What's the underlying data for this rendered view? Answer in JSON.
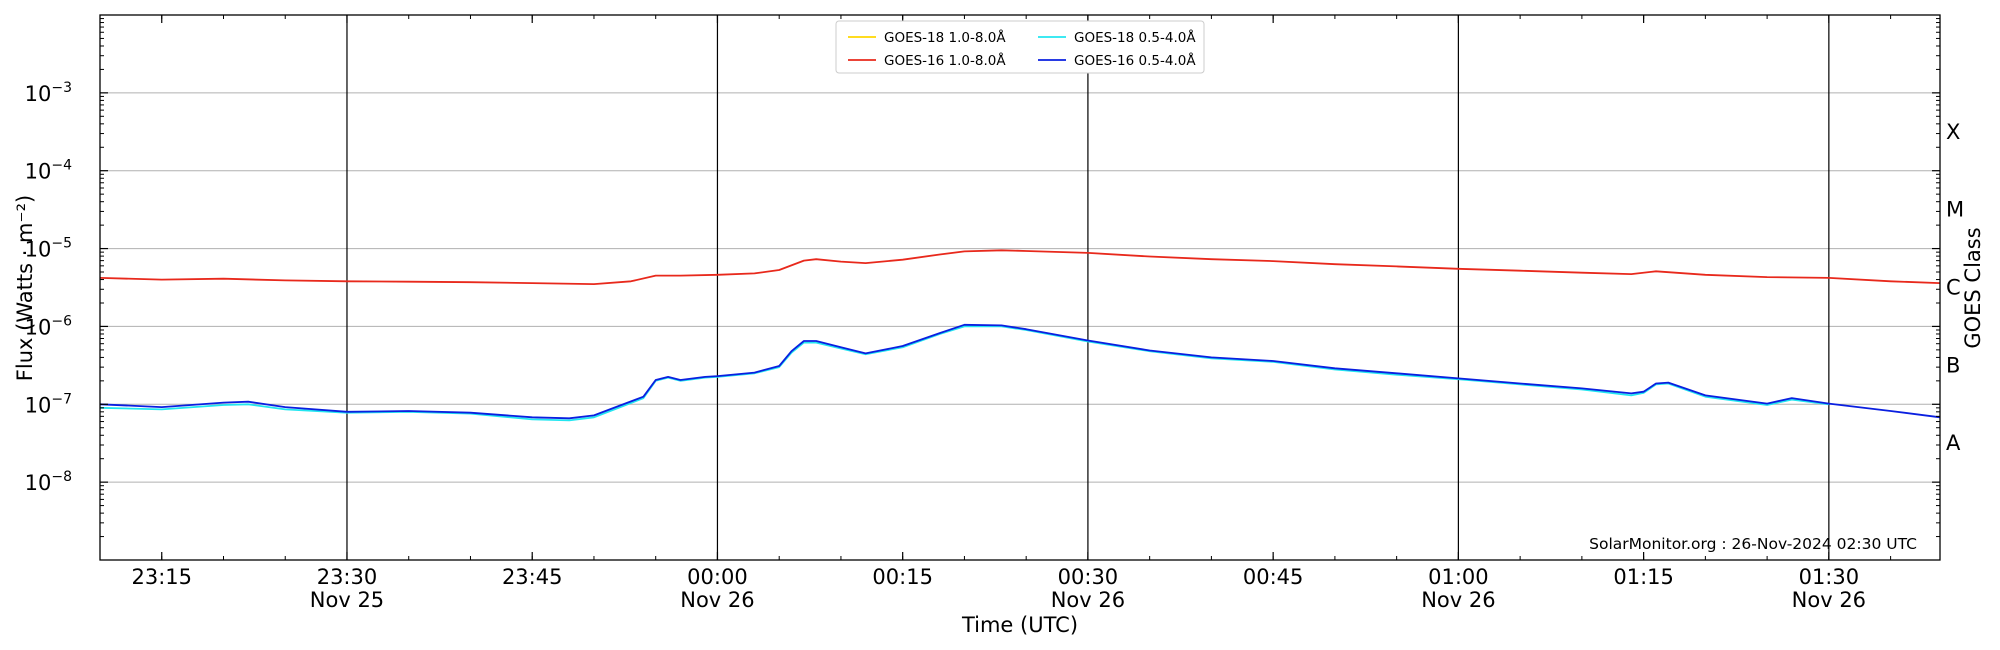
{
  "chart_data": {
    "type": "line",
    "xlabel": "Time (UTC)",
    "ylabel": "Flux (Watts · m⁻²)",
    "y2label": "GOES Class",
    "yscale": "log",
    "xlim": [
      "2024-11-25 23:10",
      "2024-11-26 01:39"
    ],
    "ylim": [
      1e-09,
      0.01
    ],
    "grid": "horizontal at decades",
    "legend_position": "top-center",
    "credit": "SolarMonitor.org : 26-Nov-2024 02:30 UTC",
    "x_ticks": [
      {
        "time": "2024-11-25 23:15",
        "label": "23:15",
        "date": ""
      },
      {
        "time": "2024-11-25 23:30",
        "label": "23:30",
        "date": "Nov 25"
      },
      {
        "time": "2024-11-25 23:45",
        "label": "23:45",
        "date": ""
      },
      {
        "time": "2024-11-26 00:00",
        "label": "00:00",
        "date": "Nov 26"
      },
      {
        "time": "2024-11-26 00:15",
        "label": "00:15",
        "date": ""
      },
      {
        "time": "2024-11-26 00:30",
        "label": "00:30",
        "date": "Nov 26"
      },
      {
        "time": "2024-11-26 00:45",
        "label": "00:45",
        "date": ""
      },
      {
        "time": "2024-11-26 01:00",
        "label": "01:00",
        "date": "Nov 26"
      },
      {
        "time": "2024-11-26 01:15",
        "label": "01:15",
        "date": ""
      },
      {
        "time": "2024-11-26 01:30",
        "label": "01:30",
        "date": "Nov 26"
      }
    ],
    "vertical_lines": [
      "2024-11-25 23:30",
      "2024-11-26 00:00",
      "2024-11-26 00:30",
      "2024-11-26 01:00",
      "2024-11-26 01:30"
    ],
    "y_ticks": [
      {
        "value": 1e-08,
        "mantissa": "10",
        "exponent": "−8"
      },
      {
        "value": 1e-07,
        "mantissa": "10",
        "exponent": "−7"
      },
      {
        "value": 1e-06,
        "mantissa": "10",
        "exponent": "−6"
      },
      {
        "value": 1e-05,
        "mantissa": "10",
        "exponent": "−5"
      },
      {
        "value": 0.0001,
        "mantissa": "10",
        "exponent": "−4"
      },
      {
        "value": 0.001,
        "mantissa": "10",
        "exponent": "−3"
      }
    ],
    "goes_classes": [
      {
        "label": "A",
        "value": 3.16e-08
      },
      {
        "label": "B",
        "value": 3.16e-07
      },
      {
        "label": "C",
        "value": 3.16e-06
      },
      {
        "label": "M",
        "value": 3.16e-05
      },
      {
        "label": "X",
        "value": 0.000316
      }
    ],
    "series": [
      {
        "name": "GOES-18 1.0-8.0Å",
        "color": "#ffd700",
        "times": [],
        "values": []
      },
      {
        "name": "GOES-16 1.0-8.0Å",
        "color": "#e8291c",
        "times": [
          "2024-11-25 23:10",
          "2024-11-25 23:15",
          "2024-11-25 23:20",
          "2024-11-25 23:25",
          "2024-11-25 23:30",
          "2024-11-25 23:35",
          "2024-11-25 23:40",
          "2024-11-25 23:45",
          "2024-11-25 23:50",
          "2024-11-25 23:53",
          "2024-11-25 23:55",
          "2024-11-25 23:57",
          "2024-11-26 00:00",
          "2024-11-26 00:03",
          "2024-11-26 00:05",
          "2024-11-26 00:07",
          "2024-11-26 00:08",
          "2024-11-26 00:10",
          "2024-11-26 00:12",
          "2024-11-26 00:15",
          "2024-11-26 00:18",
          "2024-11-26 00:20",
          "2024-11-26 00:23",
          "2024-11-26 00:25",
          "2024-11-26 00:30",
          "2024-11-26 00:35",
          "2024-11-26 00:40",
          "2024-11-26 00:45",
          "2024-11-26 00:50",
          "2024-11-26 00:55",
          "2024-11-26 01:00",
          "2024-11-26 01:05",
          "2024-11-26 01:10",
          "2024-11-26 01:14",
          "2024-11-26 01:16",
          "2024-11-26 01:20",
          "2024-11-26 01:25",
          "2024-11-26 01:30",
          "2024-11-26 01:35",
          "2024-11-26 01:39"
        ],
        "values": [
          4.2e-06,
          4e-06,
          4.1e-06,
          3.9e-06,
          3.8e-06,
          3.75e-06,
          3.7e-06,
          3.6e-06,
          3.5e-06,
          3.8e-06,
          4.5e-06,
          4.5e-06,
          4.6e-06,
          4.8e-06,
          5.3e-06,
          7e-06,
          7.3e-06,
          6.8e-06,
          6.5e-06,
          7.2e-06,
          8.4e-06,
          9.2e-06,
          9.5e-06,
          9.3e-06,
          8.8e-06,
          7.9e-06,
          7.3e-06,
          6.9e-06,
          6.3e-06,
          5.9e-06,
          5.5e-06,
          5.2e-06,
          4.9e-06,
          4.7e-06,
          5.1e-06,
          4.6e-06,
          4.3e-06,
          4.2e-06,
          3.8e-06,
          3.6e-06
        ]
      },
      {
        "name": "GOES-18 0.5-4.0Å",
        "color": "#22e6f0",
        "times": [
          "2024-11-25 23:10",
          "2024-11-25 23:15",
          "2024-11-25 23:20",
          "2024-11-25 23:22",
          "2024-11-25 23:25",
          "2024-11-25 23:30",
          "2024-11-25 23:35",
          "2024-11-25 23:40",
          "2024-11-25 23:45",
          "2024-11-25 23:48",
          "2024-11-25 23:50",
          "2024-11-25 23:52",
          "2024-11-25 23:54",
          "2024-11-25 23:55",
          "2024-11-25 23:56",
          "2024-11-25 23:57",
          "2024-11-25 23:59",
          "2024-11-26 00:00",
          "2024-11-26 00:03",
          "2024-11-26 00:05",
          "2024-11-26 00:06",
          "2024-11-26 00:07",
          "2024-11-26 00:08",
          "2024-11-26 00:10",
          "2024-11-26 00:12",
          "2024-11-26 00:15",
          "2024-11-26 00:18",
          "2024-11-26 00:20",
          "2024-11-26 00:23",
          "2024-11-26 00:25",
          "2024-11-26 00:30",
          "2024-11-26 00:35",
          "2024-11-26 00:40",
          "2024-11-26 00:45",
          "2024-11-26 00:50",
          "2024-11-26 00:55",
          "2024-11-26 01:00",
          "2024-11-26 01:05",
          "2024-11-26 01:10",
          "2024-11-26 01:14",
          "2024-11-26 01:15",
          "2024-11-26 01:16",
          "2024-11-26 01:17",
          "2024-11-26 01:20",
          "2024-11-26 01:25",
          "2024-11-26 01:27",
          "2024-11-26 01:30"
        ],
        "values": [
          9e-08,
          8.6e-08,
          9.8e-08,
          1e-07,
          8.6e-08,
          7.8e-08,
          8e-08,
          7.6e-08,
          6.4e-08,
          6.2e-08,
          6.8e-08,
          9e-08,
          1.2e-07,
          2e-07,
          2.2e-07,
          2e-07,
          2.2e-07,
          2.25e-07,
          2.5e-07,
          3e-07,
          4.6e-07,
          6.2e-07,
          6.2e-07,
          5.2e-07,
          4.4e-07,
          5.4e-07,
          8e-07,
          1e-06,
          1e-06,
          9e-07,
          6.4e-07,
          4.8e-07,
          3.9e-07,
          3.5e-07,
          2.8e-07,
          2.4e-07,
          2.1e-07,
          1.8e-07,
          1.55e-07,
          1.3e-07,
          1.4e-07,
          1.8e-07,
          1.85e-07,
          1.25e-07,
          9.8e-08,
          1.15e-07,
          1e-07
        ]
      },
      {
        "name": "GOES-16 0.5-4.0Å",
        "color": "#0a1fe0",
        "times": [
          "2024-11-25 23:10",
          "2024-11-25 23:15",
          "2024-11-25 23:20",
          "2024-11-25 23:22",
          "2024-11-25 23:25",
          "2024-11-25 23:30",
          "2024-11-25 23:35",
          "2024-11-25 23:40",
          "2024-11-25 23:45",
          "2024-11-25 23:48",
          "2024-11-25 23:50",
          "2024-11-25 23:52",
          "2024-11-25 23:54",
          "2024-11-25 23:55",
          "2024-11-25 23:56",
          "2024-11-25 23:57",
          "2024-11-25 23:59",
          "2024-11-26 00:00",
          "2024-11-26 00:03",
          "2024-11-26 00:05",
          "2024-11-26 00:06",
          "2024-11-26 00:07",
          "2024-11-26 00:08",
          "2024-11-26 00:10",
          "2024-11-26 00:12",
          "2024-11-26 00:15",
          "2024-11-26 00:18",
          "2024-11-26 00:20",
          "2024-11-26 00:23",
          "2024-11-26 00:25",
          "2024-11-26 00:30",
          "2024-11-26 00:35",
          "2024-11-26 00:40",
          "2024-11-26 00:45",
          "2024-11-26 00:50",
          "2024-11-26 00:55",
          "2024-11-26 01:00",
          "2024-11-26 01:05",
          "2024-11-26 01:10",
          "2024-11-26 01:14",
          "2024-11-26 01:15",
          "2024-11-26 01:16",
          "2024-11-26 01:17",
          "2024-11-26 01:20",
          "2024-11-26 01:25",
          "2024-11-26 01:27",
          "2024-11-26 01:30",
          "2024-11-26 01:35",
          "2024-11-26 01:39"
        ],
        "values": [
          1e-07,
          9.2e-08,
          1.05e-07,
          1.08e-07,
          9.2e-08,
          8e-08,
          8.2e-08,
          7.8e-08,
          6.8e-08,
          6.6e-08,
          7.2e-08,
          9.5e-08,
          1.25e-07,
          2.05e-07,
          2.25e-07,
          2.05e-07,
          2.25e-07,
          2.3e-07,
          2.55e-07,
          3.1e-07,
          4.8e-07,
          6.5e-07,
          6.5e-07,
          5.4e-07,
          4.5e-07,
          5.6e-07,
          8.2e-07,
          1.05e-06,
          1.03e-06,
          9.2e-07,
          6.6e-07,
          4.9e-07,
          4e-07,
          3.6e-07,
          2.9e-07,
          2.5e-07,
          2.15e-07,
          1.85e-07,
          1.6e-07,
          1.38e-07,
          1.45e-07,
          1.85e-07,
          1.9e-07,
          1.3e-07,
          1.02e-07,
          1.2e-07,
          1.02e-07,
          8.2e-08,
          6.8e-08
        ]
      }
    ]
  }
}
